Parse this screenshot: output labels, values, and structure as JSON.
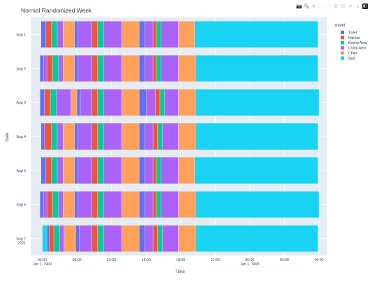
{
  "modebar": {
    "buttons": [
      {
        "name": "camera-icon",
        "glyph": "📷"
      },
      {
        "name": "zoom-icon",
        "glyph": "🔍"
      },
      {
        "name": "pan-icon",
        "glyph": "✥"
      },
      {
        "name": "box-select-icon",
        "glyph": "⬚"
      },
      {
        "name": "lasso-icon",
        "glyph": "◌"
      },
      {
        "name": "zoom-in-icon",
        "glyph": "⊞"
      },
      {
        "name": "zoom-out-icon",
        "glyph": "⊟"
      },
      {
        "name": "autoscale-icon",
        "glyph": "✕"
      },
      {
        "name": "reset-axes-icon",
        "glyph": "⌂"
      }
    ],
    "logo_glyph": "◧"
  },
  "chart_data": {
    "type": "timeline",
    "title": "Normal Randomized Week",
    "xlabel": "Time",
    "ylabel": "Date",
    "x_range": [
      "1900-01-01 05:00",
      "1900-01-02 06:40"
    ],
    "x_ticks": [
      {
        "time": "06:00",
        "sub": "Jan 1, 1900",
        "value": 6
      },
      {
        "time": "09:00",
        "sub": "",
        "value": 9
      },
      {
        "time": "12:00",
        "sub": "",
        "value": 12
      },
      {
        "time": "15:00",
        "sub": "",
        "value": 15
      },
      {
        "time": "18:00",
        "sub": "",
        "value": 18
      },
      {
        "time": "21:00",
        "sub": "",
        "value": 21
      },
      {
        "time": "00:00",
        "sub": "Jan 2, 1900",
        "value": 24
      },
      {
        "time": "03:00",
        "sub": "",
        "value": 27
      },
      {
        "time": "06:00",
        "sub": "",
        "value": 30
      }
    ],
    "y_categories": [
      {
        "label": "Aug 1",
        "sub": ""
      },
      {
        "label": "Aug 2",
        "sub": ""
      },
      {
        "label": "Aug 3",
        "sub": ""
      },
      {
        "label": "Aug 4",
        "sub": ""
      },
      {
        "label": "Aug 5",
        "sub": ""
      },
      {
        "label": "Aug 6",
        "sub": ""
      },
      {
        "label": "Aug 7",
        "sub": "2021"
      }
    ],
    "legend": {
      "title": "event",
      "position": "top-right",
      "entries": [
        {
          "name": "Toilet",
          "color": "#636efa"
        },
        {
          "name": "Kitchen",
          "color": "#ef553b"
        },
        {
          "name": "Eating Area",
          "color": "#00cc96"
        },
        {
          "name": "Living Area",
          "color": "#ab63fa"
        },
        {
          "name": "Chair",
          "color": "#ffa15a"
        },
        {
          "name": "Bed",
          "color": "#19d3f3"
        }
      ]
    },
    "colors": {
      "plot_bg": "#e5ecf6",
      "grid": "#ffffff",
      "text": "#2a3f5f"
    },
    "days": [
      {
        "label": "Aug 1",
        "segments": [
          {
            "event": "Toilet",
            "start": 5.9,
            "end": 6.3
          },
          {
            "event": "Kitchen",
            "start": 6.3,
            "end": 6.8
          },
          {
            "event": "Eating Area",
            "start": 6.8,
            "end": 7.3
          },
          {
            "event": "Living Area",
            "start": 7.3,
            "end": 7.8
          },
          {
            "event": "Chair",
            "start": 7.8,
            "end": 8.8
          },
          {
            "event": "Toilet",
            "start": 8.8,
            "end": 9.1
          },
          {
            "event": "Living Area",
            "start": 9.1,
            "end": 10.3
          },
          {
            "event": "Kitchen",
            "start": 10.3,
            "end": 10.8
          },
          {
            "event": "Eating Area",
            "start": 10.8,
            "end": 11.3
          },
          {
            "event": "Living Area",
            "start": 11.3,
            "end": 12.9
          },
          {
            "event": "Chair",
            "start": 12.9,
            "end": 14.4
          },
          {
            "event": "Toilet",
            "start": 14.4,
            "end": 14.9
          },
          {
            "event": "Living Area",
            "start": 14.9,
            "end": 15.6
          },
          {
            "event": "Kitchen",
            "start": 15.6,
            "end": 15.9
          },
          {
            "event": "Eating Area",
            "start": 15.9,
            "end": 16.3
          },
          {
            "event": "Living Area",
            "start": 16.3,
            "end": 17.8
          },
          {
            "event": "Chair",
            "start": 17.8,
            "end": 19.2
          },
          {
            "event": "Bed",
            "start": 19.2,
            "end": 29.9
          }
        ]
      },
      {
        "label": "Aug 2",
        "segments": [
          {
            "event": "Toilet",
            "start": 5.8,
            "end": 6.1
          },
          {
            "event": "Living Area",
            "start": 6.1,
            "end": 6.4
          },
          {
            "event": "Kitchen",
            "start": 6.4,
            "end": 6.9
          },
          {
            "event": "Eating Area",
            "start": 6.9,
            "end": 7.4
          },
          {
            "event": "Living Area",
            "start": 7.4,
            "end": 7.8
          },
          {
            "event": "Chair",
            "start": 7.8,
            "end": 8.8
          },
          {
            "event": "Toilet",
            "start": 8.8,
            "end": 9.1
          },
          {
            "event": "Living Area",
            "start": 9.1,
            "end": 10.3
          },
          {
            "event": "Kitchen",
            "start": 10.3,
            "end": 10.8
          },
          {
            "event": "Eating Area",
            "start": 10.8,
            "end": 11.3
          },
          {
            "event": "Living Area",
            "start": 11.3,
            "end": 12.9
          },
          {
            "event": "Chair",
            "start": 12.9,
            "end": 14.4
          },
          {
            "event": "Toilet",
            "start": 14.4,
            "end": 14.9
          },
          {
            "event": "Living Area",
            "start": 14.9,
            "end": 15.6
          },
          {
            "event": "Kitchen",
            "start": 15.6,
            "end": 15.9
          },
          {
            "event": "Eating Area",
            "start": 15.9,
            "end": 16.3
          },
          {
            "event": "Living Area",
            "start": 16.3,
            "end": 17.8
          },
          {
            "event": "Chair",
            "start": 17.8,
            "end": 19.3
          },
          {
            "event": "Bed",
            "start": 19.3,
            "end": 29.9
          }
        ]
      },
      {
        "label": "Aug 3",
        "segments": [
          {
            "event": "Toilet",
            "start": 5.8,
            "end": 6.2
          },
          {
            "event": "Kitchen",
            "start": 6.2,
            "end": 6.7
          },
          {
            "event": "Eating Area",
            "start": 6.7,
            "end": 7.2
          },
          {
            "event": "Living Area",
            "start": 7.2,
            "end": 8.5
          },
          {
            "event": "Chair",
            "start": 8.5,
            "end": 9.0
          },
          {
            "event": "Toilet",
            "start": 9.0,
            "end": 9.3
          },
          {
            "event": "Living Area",
            "start": 9.3,
            "end": 10.3
          },
          {
            "event": "Kitchen",
            "start": 10.3,
            "end": 10.8
          },
          {
            "event": "Eating Area",
            "start": 10.8,
            "end": 11.3
          },
          {
            "event": "Living Area",
            "start": 11.3,
            "end": 12.9
          },
          {
            "event": "Chair",
            "start": 12.9,
            "end": 14.4
          },
          {
            "event": "Toilet",
            "start": 14.4,
            "end": 15.0
          },
          {
            "event": "Living Area",
            "start": 15.0,
            "end": 15.8
          },
          {
            "event": "Kitchen",
            "start": 15.8,
            "end": 16.2
          },
          {
            "event": "Eating Area",
            "start": 16.2,
            "end": 16.6
          },
          {
            "event": "Living Area",
            "start": 16.6,
            "end": 17.8
          },
          {
            "event": "Chair",
            "start": 17.8,
            "end": 19.3
          },
          {
            "event": "Bed",
            "start": 19.3,
            "end": 30.0
          }
        ]
      },
      {
        "label": "Aug 4",
        "segments": [
          {
            "event": "Toilet",
            "start": 5.9,
            "end": 6.2
          },
          {
            "event": "Kitchen",
            "start": 6.2,
            "end": 6.8
          },
          {
            "event": "Eating Area",
            "start": 6.8,
            "end": 7.3
          },
          {
            "event": "Living Area",
            "start": 7.3,
            "end": 7.8
          },
          {
            "event": "Chair",
            "start": 7.8,
            "end": 8.8
          },
          {
            "event": "Toilet",
            "start": 8.8,
            "end": 9.1
          },
          {
            "event": "Living Area",
            "start": 9.1,
            "end": 10.3
          },
          {
            "event": "Kitchen",
            "start": 10.3,
            "end": 10.8
          },
          {
            "event": "Eating Area",
            "start": 10.8,
            "end": 11.3
          },
          {
            "event": "Living Area",
            "start": 11.3,
            "end": 12.9
          },
          {
            "event": "Chair",
            "start": 12.9,
            "end": 14.4
          },
          {
            "event": "Toilet",
            "start": 14.4,
            "end": 14.9
          },
          {
            "event": "Living Area",
            "start": 14.9,
            "end": 15.6
          },
          {
            "event": "Kitchen",
            "start": 15.6,
            "end": 16.0
          },
          {
            "event": "Eating Area",
            "start": 16.0,
            "end": 16.4
          },
          {
            "event": "Living Area",
            "start": 16.4,
            "end": 17.8
          },
          {
            "event": "Chair",
            "start": 17.8,
            "end": 19.3
          },
          {
            "event": "Bed",
            "start": 19.3,
            "end": 29.9
          }
        ]
      },
      {
        "label": "Aug 5",
        "segments": [
          {
            "event": "Toilet",
            "start": 5.9,
            "end": 6.3
          },
          {
            "event": "Kitchen",
            "start": 6.3,
            "end": 6.8
          },
          {
            "event": "Eating Area",
            "start": 6.8,
            "end": 7.3
          },
          {
            "event": "Living Area",
            "start": 7.3,
            "end": 7.8
          },
          {
            "event": "Chair",
            "start": 7.8,
            "end": 8.8
          },
          {
            "event": "Toilet",
            "start": 8.8,
            "end": 9.1
          },
          {
            "event": "Living Area",
            "start": 9.1,
            "end": 10.3
          },
          {
            "event": "Kitchen",
            "start": 10.3,
            "end": 10.8
          },
          {
            "event": "Eating Area",
            "start": 10.8,
            "end": 11.3
          },
          {
            "event": "Living Area",
            "start": 11.3,
            "end": 12.9
          },
          {
            "event": "Chair",
            "start": 12.9,
            "end": 14.4
          },
          {
            "event": "Toilet",
            "start": 14.4,
            "end": 14.9
          },
          {
            "event": "Living Area",
            "start": 14.9,
            "end": 15.6
          },
          {
            "event": "Kitchen",
            "start": 15.6,
            "end": 15.9
          },
          {
            "event": "Eating Area",
            "start": 15.9,
            "end": 16.3
          },
          {
            "event": "Living Area",
            "start": 16.3,
            "end": 17.8
          },
          {
            "event": "Chair",
            "start": 17.8,
            "end": 19.2
          },
          {
            "event": "Bed",
            "start": 19.2,
            "end": 29.9
          }
        ]
      },
      {
        "label": "Aug 6",
        "segments": [
          {
            "event": "Toilet",
            "start": 5.8,
            "end": 6.1
          },
          {
            "event": "Living Area",
            "start": 6.1,
            "end": 6.4
          },
          {
            "event": "Kitchen",
            "start": 6.4,
            "end": 6.9
          },
          {
            "event": "Eating Area",
            "start": 6.9,
            "end": 7.4
          },
          {
            "event": "Living Area",
            "start": 7.4,
            "end": 7.8
          },
          {
            "event": "Chair",
            "start": 7.8,
            "end": 8.8
          },
          {
            "event": "Toilet",
            "start": 8.8,
            "end": 9.1
          },
          {
            "event": "Living Area",
            "start": 9.1,
            "end": 10.3
          },
          {
            "event": "Kitchen",
            "start": 10.3,
            "end": 10.8
          },
          {
            "event": "Eating Area",
            "start": 10.8,
            "end": 11.3
          },
          {
            "event": "Living Area",
            "start": 11.3,
            "end": 12.9
          },
          {
            "event": "Chair",
            "start": 12.9,
            "end": 14.4
          },
          {
            "event": "Toilet",
            "start": 14.4,
            "end": 14.9
          },
          {
            "event": "Living Area",
            "start": 14.9,
            "end": 15.6
          },
          {
            "event": "Kitchen",
            "start": 15.6,
            "end": 15.9
          },
          {
            "event": "Eating Area",
            "start": 15.9,
            "end": 16.3
          },
          {
            "event": "Living Area",
            "start": 16.3,
            "end": 17.8
          },
          {
            "event": "Chair",
            "start": 17.8,
            "end": 19.3
          },
          {
            "event": "Bed",
            "start": 19.3,
            "end": 30.0
          }
        ]
      },
      {
        "label": "Aug 7",
        "segments": [
          {
            "event": "Bed",
            "start": 6.0,
            "end": 6.4
          },
          {
            "event": "Toilet",
            "start": 6.4,
            "end": 6.6
          },
          {
            "event": "Kitchen",
            "start": 6.6,
            "end": 7.0
          },
          {
            "event": "Eating Area",
            "start": 7.0,
            "end": 7.5
          },
          {
            "event": "Living Area",
            "start": 7.5,
            "end": 7.9
          },
          {
            "event": "Chair",
            "start": 7.9,
            "end": 8.9
          },
          {
            "event": "Toilet",
            "start": 8.9,
            "end": 9.2
          },
          {
            "event": "Living Area",
            "start": 9.2,
            "end": 10.3
          },
          {
            "event": "Kitchen",
            "start": 10.3,
            "end": 10.8
          },
          {
            "event": "Eating Area",
            "start": 10.8,
            "end": 11.3
          },
          {
            "event": "Living Area",
            "start": 11.3,
            "end": 12.9
          },
          {
            "event": "Chair",
            "start": 12.9,
            "end": 14.4
          },
          {
            "event": "Toilet",
            "start": 14.4,
            "end": 14.9
          },
          {
            "event": "Living Area",
            "start": 14.9,
            "end": 15.6
          },
          {
            "event": "Kitchen",
            "start": 15.6,
            "end": 16.0
          },
          {
            "event": "Eating Area",
            "start": 16.0,
            "end": 16.4
          },
          {
            "event": "Living Area",
            "start": 16.4,
            "end": 17.8
          },
          {
            "event": "Chair",
            "start": 17.8,
            "end": 19.3
          },
          {
            "event": "Bed",
            "start": 19.3,
            "end": 29.9
          }
        ]
      }
    ]
  }
}
